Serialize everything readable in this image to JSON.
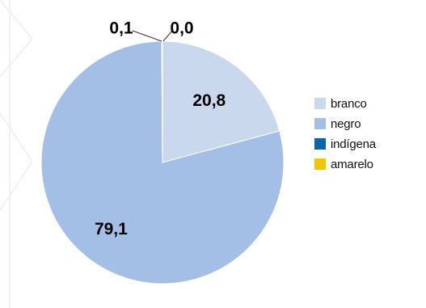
{
  "chart_data": {
    "type": "pie",
    "categories": [
      "branco",
      "negro",
      "indígena",
      "amarelo"
    ],
    "values": [
      20.8,
      79.1,
      0.1,
      0.0
    ],
    "value_labels": [
      "20,8",
      "79,1",
      "0,1",
      "0,0"
    ],
    "colors": [
      "#cad8ee",
      "#a3bfe5",
      "#0a64ad",
      "#f5c400"
    ],
    "start_angle_deg": 0,
    "direction": "clockwise",
    "legend": {
      "placement": "right",
      "items": [
        {
          "label": "branco",
          "color": "#cad8ee"
        },
        {
          "label": "negro",
          "color": "#a3bfe5"
        },
        {
          "label": "indígena",
          "color": "#0a64ad"
        },
        {
          "label": "amarelo",
          "color": "#f5c400"
        }
      ]
    },
    "title": ""
  }
}
